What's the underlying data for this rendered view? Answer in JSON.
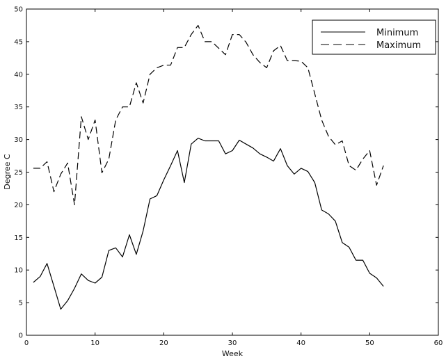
{
  "chart_data": {
    "type": "line",
    "xlabel": "Week",
    "ylabel": "Degree C",
    "xlim": [
      0,
      60
    ],
    "ylim": [
      0,
      50
    ],
    "xticks": [
      0,
      10,
      20,
      30,
      40,
      50,
      60
    ],
    "yticks": [
      0,
      5,
      10,
      15,
      20,
      25,
      30,
      35,
      40,
      45,
      50
    ],
    "grid": false,
    "legend_position": "top-right",
    "series": [
      {
        "name": "Minimum",
        "line_style": "solid",
        "color": "#000000",
        "x": [
          1,
          2,
          3,
          4,
          5,
          6,
          7,
          8,
          9,
          10,
          11,
          12,
          13,
          14,
          15,
          16,
          17,
          18,
          19,
          20,
          21,
          22,
          23,
          24,
          25,
          26,
          27,
          28,
          29,
          30,
          31,
          32,
          33,
          34,
          35,
          36,
          37,
          38,
          39,
          40,
          41,
          42,
          43,
          44,
          45,
          46,
          47,
          48,
          49,
          50,
          51,
          52
        ],
        "y": [
          8.1,
          9.0,
          11.0,
          7.5,
          4.0,
          5.3,
          7.2,
          9.4,
          8.4,
          8.0,
          8.9,
          13.0,
          13.4,
          12.0,
          15.4,
          12.4,
          16.0,
          20.9,
          21.4,
          23.8,
          26.0,
          28.3,
          23.4,
          29.3,
          30.2,
          29.8,
          29.8,
          29.8,
          27.8,
          28.3,
          29.9,
          29.3,
          28.7,
          27.8,
          27.3,
          26.7,
          28.6,
          26.0,
          24.7,
          25.6,
          25.1,
          23.4,
          19.2,
          18.6,
          17.5,
          14.2,
          13.5,
          11.5,
          11.5,
          9.5,
          8.8,
          7.5
        ]
      },
      {
        "name": "Maximum",
        "line_style": "dashed",
        "color": "#000000",
        "x": [
          1,
          2,
          3,
          4,
          5,
          6,
          7,
          8,
          9,
          10,
          11,
          12,
          13,
          14,
          15,
          16,
          17,
          18,
          19,
          20,
          21,
          22,
          23,
          24,
          25,
          26,
          27,
          28,
          29,
          30,
          31,
          32,
          33,
          34,
          35,
          36,
          37,
          38,
          39,
          40,
          41,
          42,
          43,
          44,
          45,
          46,
          47,
          48,
          49,
          50,
          51,
          52
        ],
        "y": [
          25.6,
          25.6,
          26.6,
          22.0,
          24.7,
          26.4,
          20.0,
          33.5,
          30.0,
          33.0,
          24.9,
          27.0,
          33.0,
          35.0,
          35.0,
          38.7,
          35.6,
          40.0,
          41.0,
          41.4,
          41.4,
          44.1,
          44.1,
          46.1,
          47.5,
          45.0,
          45.0,
          44.0,
          43.0,
          46.1,
          46.1,
          44.9,
          43.0,
          41.8,
          41.0,
          43.6,
          44.4,
          42.1,
          42.1,
          42.0,
          41.0,
          37.0,
          33.0,
          30.5,
          29.2,
          29.8,
          26.0,
          25.3,
          27.0,
          28.3,
          23.0,
          26.0
        ]
      }
    ]
  }
}
